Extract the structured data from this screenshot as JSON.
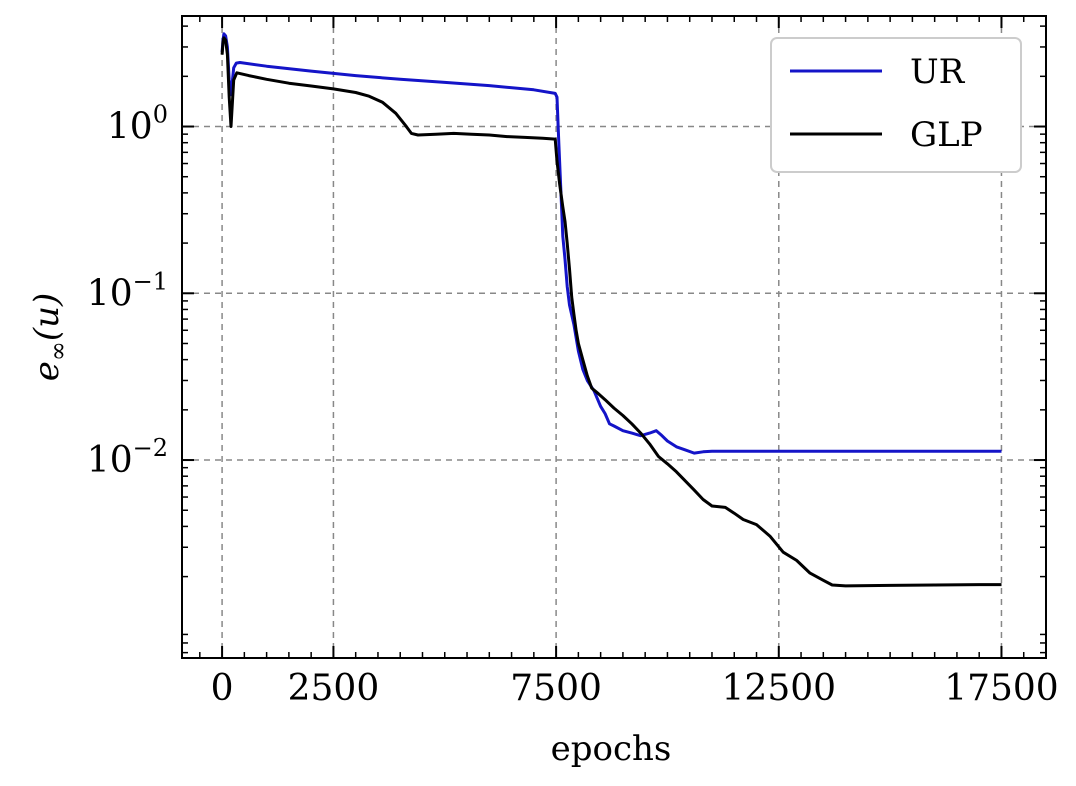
{
  "chart_data": {
    "type": "line",
    "xlabel": "epochs",
    "ylabel": "e∞(u)",
    "ylabel_parts": {
      "base": "e",
      "subscript": "∞",
      "arg": "(u)"
    },
    "yscale": "log",
    "xlim": [
      -900,
      18500
    ],
    "ylim": [
      0.00065,
      4.6
    ],
    "grid": true,
    "legend_position": "top-right",
    "x_ticks": [
      0,
      2500,
      7500,
      12500,
      17500
    ],
    "x_tick_labels": [
      "0",
      "2500",
      "7500",
      "12500",
      "17500"
    ],
    "y_ticks": [
      {
        "value": 1,
        "base": "10",
        "exp": "0"
      },
      {
        "value": 0.1,
        "base": "10",
        "exp": "−1"
      },
      {
        "value": 0.01,
        "base": "10",
        "exp": "−2"
      }
    ],
    "series": [
      {
        "name": "UR",
        "color": "#1414c8",
        "points": [
          [
            0,
            2.8
          ],
          [
            20,
            3.3
          ],
          [
            40,
            3.6
          ],
          [
            80,
            3.5
          ],
          [
            120,
            3.0
          ],
          [
            160,
            1.9
          ],
          [
            200,
            1.55
          ],
          [
            260,
            2.25
          ],
          [
            320,
            2.4
          ],
          [
            400,
            2.42
          ],
          [
            1000,
            2.3
          ],
          [
            2000,
            2.15
          ],
          [
            3000,
            2.02
          ],
          [
            4000,
            1.92
          ],
          [
            5000,
            1.84
          ],
          [
            6000,
            1.76
          ],
          [
            7000,
            1.66
          ],
          [
            7480,
            1.58
          ],
          [
            7520,
            1.5
          ],
          [
            7560,
            0.8
          ],
          [
            7600,
            0.45
          ],
          [
            7650,
            0.22
          ],
          [
            7700,
            0.16
          ],
          [
            7750,
            0.11
          ],
          [
            7800,
            0.085
          ],
          [
            7900,
            0.065
          ],
          [
            8000,
            0.045
          ],
          [
            8100,
            0.035
          ],
          [
            8200,
            0.03
          ],
          [
            8350,
            0.026
          ],
          [
            8500,
            0.021
          ],
          [
            8600,
            0.019
          ],
          [
            8700,
            0.0165
          ],
          [
            8800,
            0.016
          ],
          [
            9000,
            0.015
          ],
          [
            9200,
            0.0145
          ],
          [
            9400,
            0.014
          ],
          [
            9600,
            0.0145
          ],
          [
            9750,
            0.015
          ],
          [
            9850,
            0.0142
          ],
          [
            10000,
            0.013
          ],
          [
            10200,
            0.012
          ],
          [
            10400,
            0.0115
          ],
          [
            10600,
            0.011
          ],
          [
            10800,
            0.0112
          ],
          [
            11000,
            0.0113
          ],
          [
            12000,
            0.0113
          ],
          [
            13000,
            0.0113
          ],
          [
            14000,
            0.0113
          ],
          [
            15000,
            0.0113
          ],
          [
            16000,
            0.0113
          ],
          [
            17000,
            0.0113
          ],
          [
            17500,
            0.0113
          ]
        ]
      },
      {
        "name": "GLP",
        "color": "#000000",
        "points": [
          [
            0,
            2.7
          ],
          [
            20,
            3.2
          ],
          [
            40,
            3.4
          ],
          [
            80,
            3.3
          ],
          [
            120,
            2.7
          ],
          [
            160,
            1.5
          ],
          [
            200,
            1.0
          ],
          [
            260,
            1.9
          ],
          [
            330,
            2.1
          ],
          [
            600,
            2.02
          ],
          [
            1000,
            1.92
          ],
          [
            1500,
            1.82
          ],
          [
            2000,
            1.75
          ],
          [
            2500,
            1.68
          ],
          [
            3000,
            1.6
          ],
          [
            3300,
            1.52
          ],
          [
            3600,
            1.4
          ],
          [
            3900,
            1.2
          ],
          [
            4100,
            1.03
          ],
          [
            4250,
            0.91
          ],
          [
            4400,
            0.89
          ],
          [
            4800,
            0.9
          ],
          [
            5200,
            0.91
          ],
          [
            5600,
            0.9
          ],
          [
            6000,
            0.89
          ],
          [
            6400,
            0.87
          ],
          [
            6800,
            0.86
          ],
          [
            7200,
            0.85
          ],
          [
            7480,
            0.84
          ],
          [
            7520,
            0.62
          ],
          [
            7580,
            0.45
          ],
          [
            7650,
            0.33
          ],
          [
            7700,
            0.27
          ],
          [
            7750,
            0.2
          ],
          [
            7800,
            0.14
          ],
          [
            7850,
            0.095
          ],
          [
            7900,
            0.075
          ],
          [
            7950,
            0.06
          ],
          [
            8000,
            0.05
          ],
          [
            8100,
            0.04
          ],
          [
            8200,
            0.032
          ],
          [
            8300,
            0.027
          ],
          [
            8450,
            0.025
          ],
          [
            8600,
            0.023
          ],
          [
            8800,
            0.0205
          ],
          [
            9000,
            0.0185
          ],
          [
            9200,
            0.0165
          ],
          [
            9400,
            0.0145
          ],
          [
            9600,
            0.0125
          ],
          [
            9800,
            0.0105
          ],
          [
            10000,
            0.0095
          ],
          [
            10200,
            0.0085
          ],
          [
            10400,
            0.0075
          ],
          [
            10600,
            0.0066
          ],
          [
            10800,
            0.0058
          ],
          [
            11000,
            0.0053
          ],
          [
            11300,
            0.0052
          ],
          [
            11500,
            0.0048
          ],
          [
            11700,
            0.0044
          ],
          [
            12000,
            0.0041
          ],
          [
            12300,
            0.0035
          ],
          [
            12600,
            0.0028
          ],
          [
            12900,
            0.0025
          ],
          [
            13200,
            0.0021
          ],
          [
            13500,
            0.0019
          ],
          [
            13700,
            0.00178
          ],
          [
            14000,
            0.00176
          ],
          [
            15000,
            0.00177
          ],
          [
            16000,
            0.00178
          ],
          [
            17000,
            0.00179
          ],
          [
            17500,
            0.00179
          ]
        ]
      }
    ]
  }
}
